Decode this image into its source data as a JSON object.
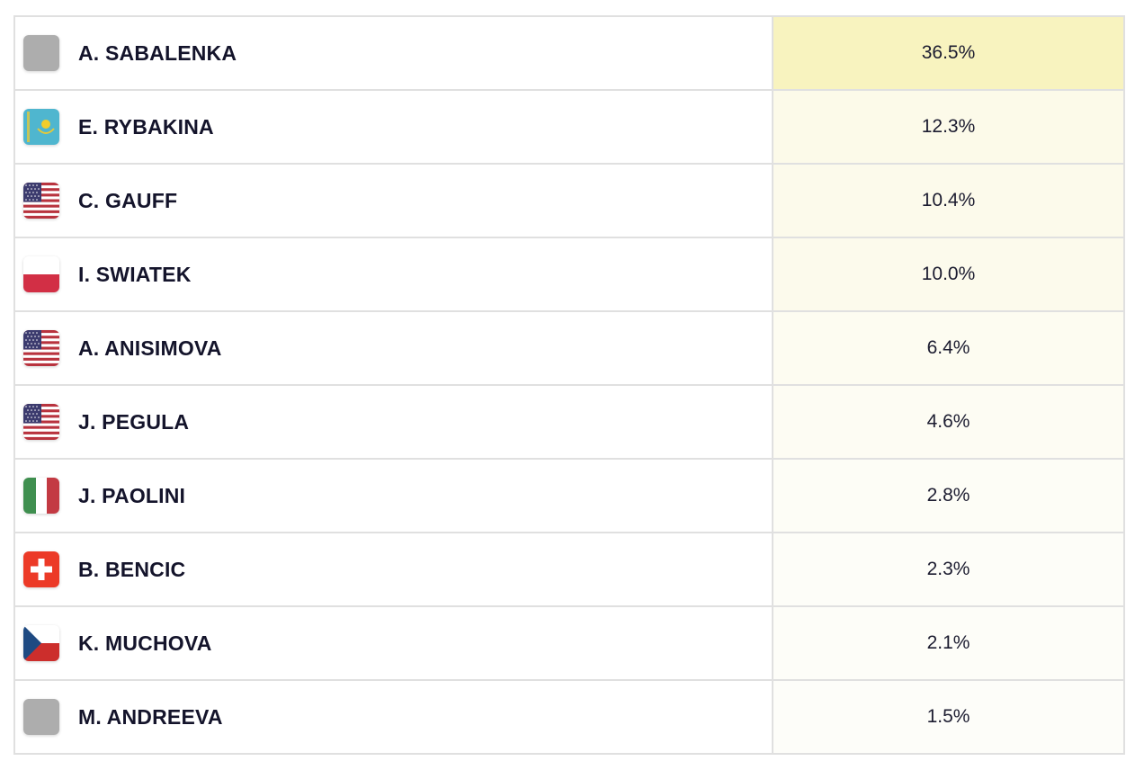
{
  "table": {
    "rows": [
      {
        "name": "A. SABALENKA",
        "flag": "neutral-flag-icon",
        "value": "36.5%",
        "bg": "#f8f3bf"
      },
      {
        "name": "E. RYBAKINA",
        "flag": "kazakhstan-flag-icon",
        "value": "12.3%",
        "bg": "#fcfae9"
      },
      {
        "name": "C. GAUFF",
        "flag": "usa-flag-icon",
        "value": "10.4%",
        "bg": "#fcfaeb"
      },
      {
        "name": "I. SWIATEK",
        "flag": "poland-flag-icon",
        "value": "10.0%",
        "bg": "#fcfaec"
      },
      {
        "name": "A. ANISIMOVA",
        "flag": "usa-flag-icon",
        "value": "6.4%",
        "bg": "#fdfcf1"
      },
      {
        "name": "J. PEGULA",
        "flag": "usa-flag-icon",
        "value": "4.6%",
        "bg": "#fdfcf3"
      },
      {
        "name": "J. PAOLINI",
        "flag": "italy-flag-icon",
        "value": "2.8%",
        "bg": "#fdfdf6"
      },
      {
        "name": "B. BENCIC",
        "flag": "switzerland-flag-icon",
        "value": "2.3%",
        "bg": "#fdfdf8"
      },
      {
        "name": "K. MUCHOVA",
        "flag": "czechia-flag-icon",
        "value": "2.1%",
        "bg": "#fdfdf8"
      },
      {
        "name": "M. ANDREEVA",
        "flag": "neutral-flag-icon",
        "value": "1.5%",
        "bg": "#fdfdf9"
      }
    ]
  }
}
